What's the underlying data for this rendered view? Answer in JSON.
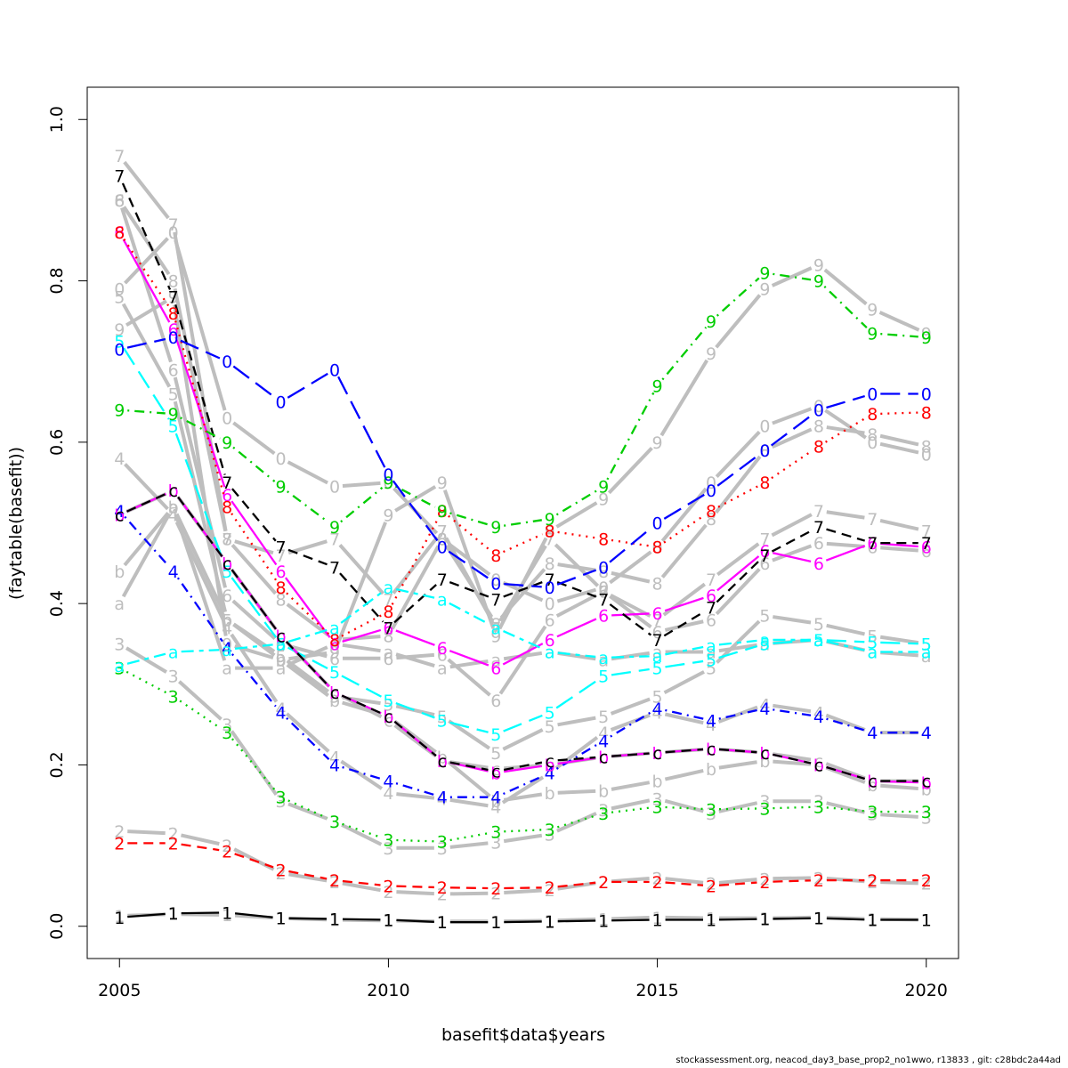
{
  "chart_data": {
    "type": "line",
    "xlabel": "basefit$data$years",
    "ylabel": "(faytable(basefit))",
    "xlim": [
      2004.4,
      2020.6
    ],
    "ylim": [
      -0.04,
      1.04
    ],
    "x_ticks": [
      "2005",
      "2010",
      "2015",
      "2020"
    ],
    "y_ticks": [
      "0.0",
      "0.2",
      "0.4",
      "0.6",
      "0.8",
      "1.0"
    ],
    "x": [
      2005,
      2006,
      2007,
      2008,
      2009,
      2010,
      2011,
      2012,
      2013,
      2014,
      2015,
      2016,
      2017,
      2018,
      2019,
      2020
    ],
    "grid": false,
    "legend": "none",
    "background_series": {
      "color": "#bebebe",
      "labels": [
        "1",
        "2",
        "3",
        "4",
        "5",
        "6",
        "7",
        "8",
        "9",
        "0",
        "a",
        "b",
        "c"
      ],
      "values": [
        [
          0.013,
          0.015,
          0.014,
          0.01,
          0.008,
          0.007,
          0.006,
          0.006,
          0.007,
          0.009,
          0.011,
          0.01,
          0.01,
          0.011,
          0.009,
          0.008
        ],
        [
          0.118,
          0.115,
          0.1,
          0.066,
          0.055,
          0.043,
          0.04,
          0.041,
          0.045,
          0.055,
          0.06,
          0.053,
          0.059,
          0.06,
          0.055,
          0.053
        ],
        [
          0.35,
          0.31,
          0.25,
          0.155,
          0.13,
          0.097,
          0.097,
          0.104,
          0.114,
          0.144,
          0.158,
          0.14,
          0.155,
          0.155,
          0.139,
          0.135
        ],
        [
          0.58,
          0.51,
          0.37,
          0.27,
          0.21,
          0.165,
          0.158,
          0.148,
          0.19,
          0.24,
          0.265,
          0.25,
          0.275,
          0.265,
          0.24,
          0.24
        ],
        [
          0.78,
          0.66,
          0.38,
          0.335,
          0.285,
          0.275,
          0.26,
          0.215,
          0.248,
          0.26,
          0.285,
          0.32,
          0.385,
          0.375,
          0.36,
          0.35
        ],
        [
          0.9,
          0.69,
          0.41,
          0.35,
          0.332,
          0.332,
          0.337,
          0.28,
          0.38,
          0.415,
          0.365,
          0.38,
          0.45,
          0.475,
          0.47,
          0.465
        ],
        [
          0.955,
          0.87,
          0.48,
          0.46,
          0.48,
          0.405,
          0.49,
          0.37,
          0.48,
          0.415,
          0.38,
          0.43,
          0.48,
          0.515,
          0.505,
          0.49
        ],
        [
          0.9,
          0.8,
          0.48,
          0.405,
          0.355,
          0.36,
          0.48,
          0.375,
          0.45,
          0.44,
          0.425,
          0.505,
          0.59,
          0.62,
          0.61,
          0.595
        ],
        [
          0.74,
          0.78,
          0.35,
          0.33,
          0.34,
          0.51,
          0.55,
          0.36,
          0.49,
          0.53,
          0.6,
          0.71,
          0.79,
          0.82,
          0.765,
          0.735
        ],
        [
          0.79,
          0.86,
          0.63,
          0.58,
          0.545,
          0.55,
          0.48,
          0.43,
          0.4,
          0.42,
          0.47,
          0.55,
          0.62,
          0.645,
          0.6,
          0.585
        ],
        [
          0.4,
          0.52,
          0.32,
          0.32,
          0.35,
          0.34,
          0.32,
          0.33,
          0.34,
          0.33,
          0.34,
          0.34,
          0.35,
          0.355,
          0.34,
          0.335
        ],
        [
          0.44,
          0.52,
          0.38,
          0.33,
          0.28,
          0.26,
          0.21,
          0.155,
          0.165,
          0.168,
          0.18,
          0.195,
          0.205,
          0.2,
          0.175,
          0.17
        ],
        [
          0.51,
          0.54,
          0.45,
          0.36,
          0.29,
          0.255,
          0.205,
          0.195,
          0.2,
          0.21,
          0.215,
          0.22,
          0.215,
          0.205,
          0.18,
          0.18
        ]
      ]
    },
    "series": [
      {
        "label": "1",
        "color": "#000000",
        "dash": "solid",
        "values": [
          0.011,
          0.016,
          0.017,
          0.01,
          0.009,
          0.008,
          0.005,
          0.005,
          0.006,
          0.007,
          0.008,
          0.008,
          0.009,
          0.01,
          0.008,
          0.008
        ]
      },
      {
        "label": "2",
        "color": "#ff0000",
        "dash": "dashed",
        "values": [
          0.103,
          0.103,
          0.093,
          0.07,
          0.057,
          0.05,
          0.048,
          0.047,
          0.048,
          0.055,
          0.055,
          0.05,
          0.055,
          0.057,
          0.057,
          0.057
        ]
      },
      {
        "label": "3",
        "color": "#00cd00",
        "dash": "dotted",
        "values": [
          0.32,
          0.285,
          0.24,
          0.16,
          0.13,
          0.107,
          0.105,
          0.117,
          0.12,
          0.14,
          0.148,
          0.145,
          0.146,
          0.148,
          0.142,
          0.142
        ]
      },
      {
        "label": "4",
        "color": "#0000ff",
        "dash": "dotdash",
        "values": [
          0.515,
          0.44,
          0.345,
          0.265,
          0.2,
          0.18,
          0.16,
          0.16,
          0.19,
          0.23,
          0.27,
          0.255,
          0.27,
          0.26,
          0.24,
          0.24
        ]
      },
      {
        "label": "5",
        "color": "#00ffff",
        "dash": "longdash",
        "values": [
          0.725,
          0.62,
          0.44,
          0.35,
          0.315,
          0.28,
          0.255,
          0.238,
          0.265,
          0.31,
          0.32,
          0.33,
          0.35,
          0.355,
          0.352,
          0.35
        ]
      },
      {
        "label": "6",
        "color": "#ff00ff",
        "dash": "solid",
        "values": [
          0.86,
          0.74,
          0.535,
          0.44,
          0.35,
          0.37,
          0.345,
          0.32,
          0.355,
          0.385,
          0.388,
          0.41,
          0.465,
          0.45,
          0.475,
          0.47
        ]
      },
      {
        "label": "7",
        "color": "#000000",
        "dash": "dashed",
        "values": [
          0.93,
          0.78,
          0.55,
          0.47,
          0.445,
          0.37,
          0.43,
          0.405,
          0.43,
          0.405,
          0.355,
          0.395,
          0.46,
          0.495,
          0.475,
          0.475
        ]
      },
      {
        "label": "8",
        "color": "#ff0000",
        "dash": "dotted",
        "values": [
          0.86,
          0.76,
          0.52,
          0.42,
          0.355,
          0.39,
          0.515,
          0.46,
          0.49,
          0.48,
          0.47,
          0.515,
          0.55,
          0.595,
          0.635,
          0.637
        ]
      },
      {
        "label": "9",
        "color": "#00cd00",
        "dash": "dotdash",
        "values": [
          0.64,
          0.635,
          0.6,
          0.545,
          0.495,
          0.55,
          0.515,
          0.495,
          0.505,
          0.545,
          0.67,
          0.75,
          0.81,
          0.8,
          0.735,
          0.73
        ]
      },
      {
        "label": "0",
        "color": "#0000ff",
        "dash": "longdash",
        "values": [
          0.715,
          0.73,
          0.7,
          0.65,
          0.69,
          0.56,
          0.47,
          0.425,
          0.42,
          0.445,
          0.5,
          0.54,
          0.59,
          0.64,
          0.66,
          0.66
        ]
      },
      {
        "label": "a",
        "color": "#00ffff",
        "dash": "twodash",
        "values": [
          0.323,
          0.34,
          0.343,
          0.35,
          0.37,
          0.42,
          0.405,
          0.37,
          0.34,
          0.333,
          0.335,
          0.348,
          0.355,
          0.355,
          0.34,
          0.34
        ]
      },
      {
        "label": "b",
        "color": "#ff00ff",
        "dash": "solid",
        "values": [
          0.51,
          0.54,
          0.45,
          0.36,
          0.29,
          0.26,
          0.205,
          0.19,
          0.2,
          0.21,
          0.215,
          0.22,
          0.215,
          0.2,
          0.18,
          0.178
        ]
      },
      {
        "label": "c",
        "color": "#000000",
        "dash": "dashed",
        "values": [
          0.51,
          0.54,
          0.45,
          0.36,
          0.29,
          0.26,
          0.205,
          0.192,
          0.205,
          0.21,
          0.215,
          0.22,
          0.215,
          0.2,
          0.18,
          0.18
        ]
      }
    ]
  },
  "footer": "stockassessment.org, neacod_day3_base_prop2_no1wwo, r13833 , git: c28bdc2a44ad"
}
